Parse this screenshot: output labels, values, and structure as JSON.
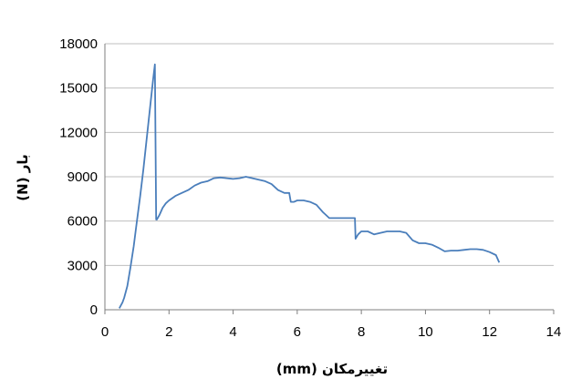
{
  "chart_data": {
    "type": "line",
    "title": "",
    "xlabel": "تغییرمکان (mm)",
    "ylabel": "بار (N)",
    "xlim": [
      0,
      14
    ],
    "ylim": [
      0,
      18000
    ],
    "x_ticks": [
      "0",
      "2",
      "4",
      "6",
      "8",
      "10",
      "12",
      "14"
    ],
    "y_ticks": [
      "0",
      "3000",
      "6000",
      "9000",
      "12000",
      "15000",
      "18000"
    ],
    "grid": "horizontal",
    "legend": "none",
    "line_color": "#4a7ebb",
    "series": [
      {
        "x": [
          0.45,
          0.5,
          0.55,
          0.6,
          0.7,
          0.8,
          0.9,
          1.0,
          1.1,
          1.2,
          1.3,
          1.4,
          1.5,
          1.56,
          1.6,
          1.62,
          1.7,
          1.8,
          1.9,
          2.0,
          2.2,
          2.4,
          2.6,
          2.8,
          3.0,
          3.2,
          3.4,
          3.6,
          3.8,
          4.0,
          4.2,
          4.4,
          4.6,
          4.8,
          5.0,
          5.2,
          5.4,
          5.6,
          5.75,
          5.8,
          5.9,
          6.0,
          6.2,
          6.4,
          6.6,
          6.8,
          7.0,
          7.2,
          7.4,
          7.6,
          7.8,
          7.82,
          7.9,
          8.0,
          8.2,
          8.4,
          8.6,
          8.8,
          9.0,
          9.2,
          9.4,
          9.6,
          9.8,
          10.0,
          10.2,
          10.4,
          10.6,
          10.8,
          11.0,
          11.2,
          11.4,
          11.6,
          11.8,
          12.0,
          12.2,
          12.3
        ],
        "y": [
          100,
          300,
          500,
          800,
          1600,
          2900,
          4300,
          6000,
          7700,
          9500,
          11500,
          13500,
          15500,
          16600,
          6100,
          6100,
          6400,
          6900,
          7200,
          7400,
          7700,
          7900,
          8100,
          8400,
          8600,
          8700,
          8900,
          8950,
          8900,
          8850,
          8900,
          9000,
          8900,
          8800,
          8700,
          8500,
          8100,
          7900,
          7900,
          7300,
          7300,
          7400,
          7400,
          7300,
          7100,
          6600,
          6200,
          6200,
          6200,
          6200,
          6200,
          4800,
          5100,
          5300,
          5300,
          5100,
          5200,
          5300,
          5300,
          5300,
          5200,
          4700,
          4500,
          4500,
          4400,
          4200,
          3950,
          4000,
          4000,
          4050,
          4100,
          4100,
          4050,
          3900,
          3700,
          3200
        ]
      }
    ]
  }
}
